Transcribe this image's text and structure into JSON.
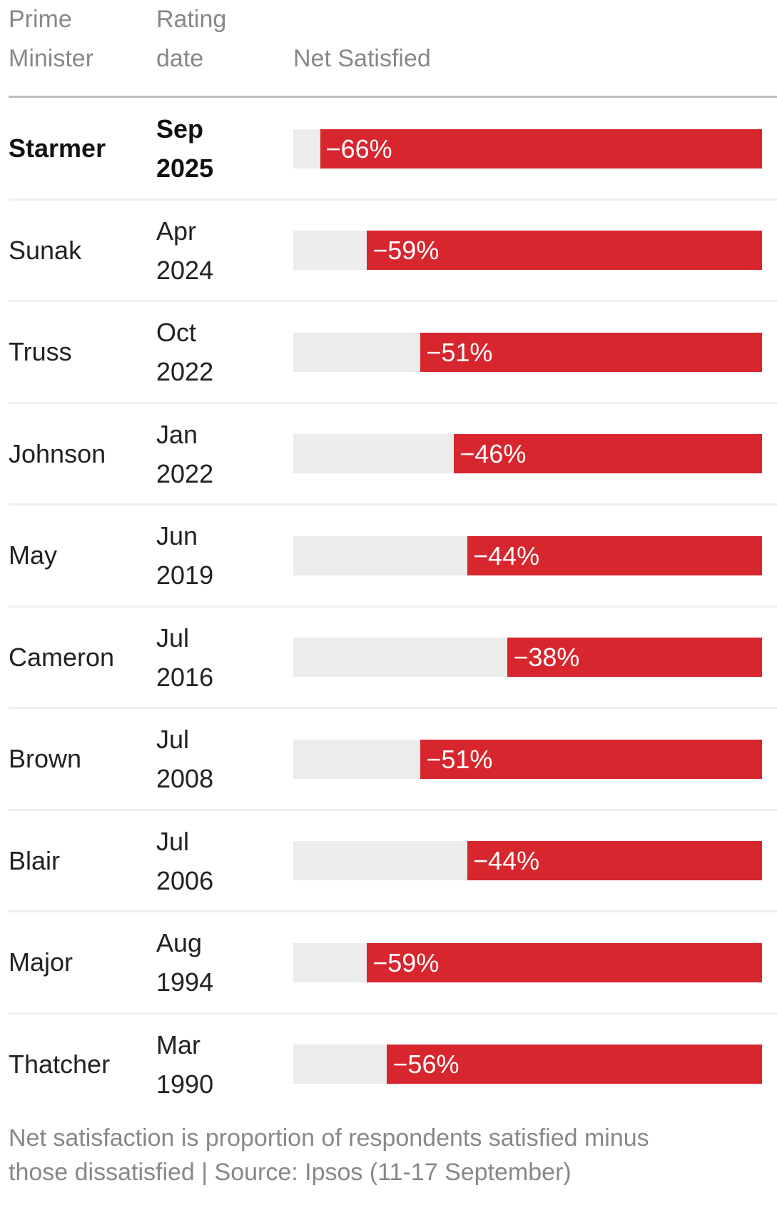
{
  "header": {
    "col1_line1": "Prime",
    "col1_line2": "Minister",
    "col2_line1": "Rating",
    "col2_line2": "date",
    "col3": "Net Satisfied"
  },
  "colors": {
    "bar": "#d7262e",
    "track": "#ececec"
  },
  "chart_data": {
    "type": "bar",
    "orientation": "horizontal",
    "title": "",
    "xlim": [
      -70,
      0
    ],
    "categories": [
      "Starmer",
      "Sunak",
      "Truss",
      "Johnson",
      "May",
      "Cameron",
      "Brown",
      "Blair",
      "Major",
      "Thatcher"
    ],
    "rows": [
      {
        "name": "Starmer",
        "month": "Sep",
        "year": "2025",
        "value": -66,
        "label": "−66%",
        "highlight": true
      },
      {
        "name": "Sunak",
        "month": "Apr",
        "year": "2024",
        "value": -59,
        "label": "−59%"
      },
      {
        "name": "Truss",
        "month": "Oct",
        "year": "2022",
        "value": -51,
        "label": "−51%"
      },
      {
        "name": "Johnson",
        "month": "Jan",
        "year": "2022",
        "value": -46,
        "label": "−46%"
      },
      {
        "name": "May",
        "month": "Jun",
        "year": "2019",
        "value": -44,
        "label": "−44%"
      },
      {
        "name": "Cameron",
        "month": "Jul",
        "year": "2016",
        "value": -38,
        "label": "−38%"
      },
      {
        "name": "Brown",
        "month": "Jul",
        "year": "2008",
        "value": -51,
        "label": "−51%"
      },
      {
        "name": "Blair",
        "month": "Jul",
        "year": "2006",
        "value": -44,
        "label": "−44%"
      },
      {
        "name": "Major",
        "month": "Aug",
        "year": "1994",
        "value": -59,
        "label": "−59%"
      },
      {
        "name": "Thatcher",
        "month": "Mar",
        "year": "1990",
        "value": -56,
        "label": "−56%"
      }
    ]
  },
  "footnote": {
    "line1": "Net satisfaction is proportion of respondents satisfied minus",
    "line2": "those dissatisfied | Source: Ipsos (11-17 September)"
  }
}
